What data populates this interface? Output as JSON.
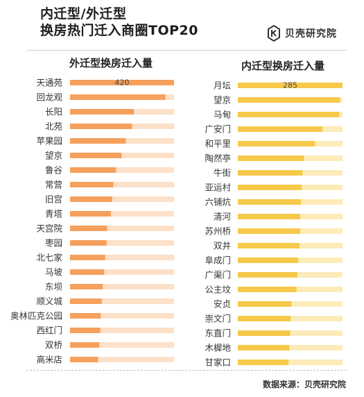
{
  "header": {
    "title_line1": "内迁型/外迁型",
    "title_line2": "换房热门迁入商圈TOP20",
    "logo_text": "贝壳研究院"
  },
  "footer": {
    "source": "数据来源：贝壳研究院"
  },
  "colors": {
    "left_bar": "#f5a05c",
    "left_track": "#fde0c8",
    "right_bar": "#f6c94a",
    "right_track": "#fdebb8"
  },
  "chart_data": [
    {
      "type": "bar",
      "title": "外迁型换房迁入量",
      "categories": [
        "天通苑",
        "回龙观",
        "长阳",
        "北苑",
        "苹果园",
        "望京",
        "鲁谷",
        "常营",
        "旧宫",
        "青塔",
        "天宫院",
        "枣园",
        "北七家",
        "马坡",
        "东坝",
        "顺义城",
        "奥林匹克公园",
        "西红门",
        "双桥",
        "高米店"
      ],
      "values": [
        420,
        385,
        258,
        250,
        225,
        208,
        186,
        175,
        170,
        165,
        150,
        148,
        142,
        138,
        132,
        128,
        124,
        122,
        118,
        113
      ],
      "data_labels": [
        "420",
        "",
        "",
        "",
        "",
        "",
        "",
        "",
        "",
        "",
        "",
        "",
        "",
        "",
        "",
        "",
        "",
        "",
        "",
        ""
      ],
      "xlim": [
        0,
        420
      ],
      "orientation": "horizontal"
    },
    {
      "type": "bar",
      "title": "内迁型换房迁入量",
      "categories": [
        "月坛",
        "望京",
        "马甸",
        "广安门",
        "和平里",
        "陶然亭",
        "牛街",
        "亚运村",
        "六铺炕",
        "清河",
        "苏州桥",
        "双井",
        "阜成门",
        "广渠门",
        "公主坟",
        "安贞",
        "崇文门",
        "东直门",
        "木樨地",
        "甘家口"
      ],
      "values": [
        285,
        278,
        276,
        230,
        210,
        180,
        176,
        174,
        172,
        170,
        170,
        168,
        164,
        162,
        160,
        146,
        144,
        142,
        140,
        138
      ],
      "data_labels": [
        "285",
        "",
        "",
        "",
        "",
        "",
        "",
        "",
        "",
        "",
        "",
        "",
        "",
        "",
        "",
        "",
        "",
        "",
        "",
        ""
      ],
      "xlim": [
        0,
        285
      ],
      "orientation": "horizontal"
    }
  ]
}
